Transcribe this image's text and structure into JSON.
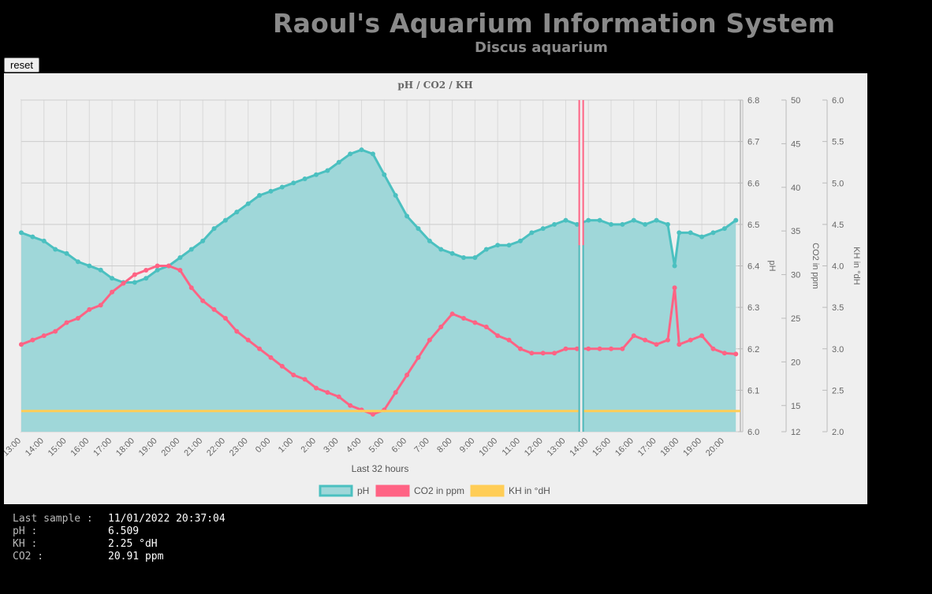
{
  "header": {
    "title": "Raoul's Aquarium Information System",
    "subtitle": "Discus aquarium"
  },
  "toolbar": {
    "reset_label": "reset"
  },
  "colors": {
    "background": "#000000",
    "panel": "#efefef",
    "ph": "#4bc0c0",
    "ph_fill": "#9fd7d9",
    "co2": "#ff6384",
    "kh": "#ffcd56",
    "title_text": "#8a8a8a"
  },
  "chart_data": {
    "type": "line",
    "title": "pH / CO2 / KH",
    "xlabel": "Last 32 hours",
    "x_ticks": [
      "13:00",
      "14:00",
      "15:00",
      "16:00",
      "17:00",
      "18:00",
      "19:00",
      "20:00",
      "21:00",
      "22:00",
      "23:00",
      "0:00",
      "1:00",
      "2:00",
      "3:00",
      "4:00",
      "5:00",
      "6:00",
      "7:00",
      "8:00",
      "9:00",
      "10:00",
      "11:00",
      "12:00",
      "13:00",
      "14:00",
      "15:00",
      "16:00",
      "17:00",
      "18:00",
      "19:00",
      "20:00"
    ],
    "x_range_hours": [
      0,
      31.7
    ],
    "grid": true,
    "legend_position": "bottom",
    "axes": [
      {
        "id": "ph",
        "label": "pH",
        "min": 6.0,
        "max": 6.8,
        "ticks": [
          "6.0",
          "6.1",
          "6.2",
          "6.3",
          "6.4",
          "6.5",
          "6.6",
          "6.7",
          "6.8"
        ]
      },
      {
        "id": "co2",
        "label": "CO2 in ppm",
        "min": 12,
        "max": 50,
        "ticks": [
          "12",
          "15",
          "20",
          "25",
          "30",
          "35",
          "40",
          "45",
          "50"
        ]
      },
      {
        "id": "kh",
        "label": "KH in °dH",
        "min": 2.0,
        "max": 6.0,
        "ticks": [
          "2.0",
          "2.5",
          "3.0",
          "3.5",
          "4.0",
          "4.5",
          "5.0",
          "5.5",
          "6.0"
        ]
      }
    ],
    "series": [
      {
        "name": "pH",
        "axis": "ph",
        "fill": true,
        "x": [
          0,
          0.5,
          1,
          1.5,
          2,
          2.5,
          3,
          3.5,
          4,
          4.5,
          5,
          5.5,
          6,
          6.5,
          7,
          7.5,
          8,
          8.5,
          9,
          9.5,
          10,
          10.5,
          11,
          11.5,
          12,
          12.5,
          13,
          13.5,
          14,
          14.5,
          15,
          15.5,
          16,
          16.5,
          17,
          17.5,
          18,
          18.5,
          19,
          19.5,
          20,
          20.5,
          21,
          21.5,
          22,
          22.5,
          23,
          23.5,
          24,
          24.5,
          25,
          25.5,
          26,
          26.5,
          27,
          27.5,
          28,
          28.5,
          28.8,
          29,
          29.5,
          30,
          30.5,
          31,
          31.5
        ],
        "values": [
          6.48,
          6.47,
          6.46,
          6.44,
          6.43,
          6.41,
          6.4,
          6.39,
          6.37,
          6.36,
          6.36,
          6.37,
          6.39,
          6.4,
          6.42,
          6.44,
          6.46,
          6.49,
          6.51,
          6.53,
          6.55,
          6.57,
          6.58,
          6.59,
          6.6,
          6.61,
          6.62,
          6.63,
          6.65,
          6.67,
          6.68,
          6.67,
          6.62,
          6.57,
          6.52,
          6.49,
          6.46,
          6.44,
          6.43,
          6.42,
          6.42,
          6.44,
          6.45,
          6.45,
          6.46,
          6.48,
          6.49,
          6.5,
          6.51,
          6.5,
          6.51,
          6.51,
          6.5,
          6.5,
          6.51,
          6.5,
          6.51,
          6.5,
          6.4,
          6.48,
          6.48,
          6.47,
          6.48,
          6.49,
          6.51
        ]
      },
      {
        "name": "CO2 in ppm",
        "axis": "co2",
        "x": [
          0,
          0.5,
          1,
          1.5,
          2,
          2.5,
          3,
          3.5,
          4,
          4.5,
          5,
          5.5,
          6,
          6.5,
          7,
          7.5,
          8,
          8.5,
          9,
          9.5,
          10,
          10.5,
          11,
          11.5,
          12,
          12.5,
          13,
          13.5,
          14,
          14.5,
          15,
          15.5,
          16,
          16.5,
          17,
          17.5,
          18,
          18.5,
          19,
          19.5,
          20,
          20.5,
          21,
          21.5,
          22,
          22.5,
          23,
          23.5,
          24,
          24.5,
          25,
          25.5,
          26,
          26.5,
          27,
          27.5,
          28,
          28.5,
          28.8,
          29,
          29.5,
          30,
          30.5,
          31,
          31.5
        ],
        "values": [
          22,
          22.5,
          23,
          23.5,
          24.5,
          25,
          26,
          26.5,
          28,
          29,
          30,
          30.5,
          31,
          31,
          30.5,
          28.5,
          27,
          26,
          25,
          23.5,
          22.5,
          21.5,
          20.5,
          19.5,
          18.5,
          18,
          17,
          16.5,
          16,
          15,
          14.5,
          14,
          14.5,
          16.5,
          18.5,
          20.5,
          22.5,
          24,
          25.5,
          25,
          24.5,
          24,
          23,
          22.5,
          21.5,
          21,
          21,
          21,
          21.5,
          21.5,
          21.5,
          21.5,
          21.5,
          21.5,
          23,
          22.5,
          22,
          22.5,
          28.5,
          22,
          22.5,
          23,
          21.5,
          21,
          20.9
        ]
      },
      {
        "name": "KH in °dH",
        "axis": "kh",
        "x": [
          0,
          31.7
        ],
        "values": [
          2.25,
          2.25
        ]
      }
    ],
    "annotations": [
      {
        "type": "vertical-gap",
        "x": 24.7,
        "series": [
          "pH",
          "CO2 in ppm"
        ]
      }
    ]
  },
  "last_sample": [
    {
      "label": "Last sample :",
      "value": "11/01/2022 20:37:04"
    },
    {
      "label": "pH :",
      "value": "6.509"
    },
    {
      "label": "KH :",
      "value": "2.25 °dH"
    },
    {
      "label": "CO2 :",
      "value": "20.91 ppm"
    }
  ]
}
